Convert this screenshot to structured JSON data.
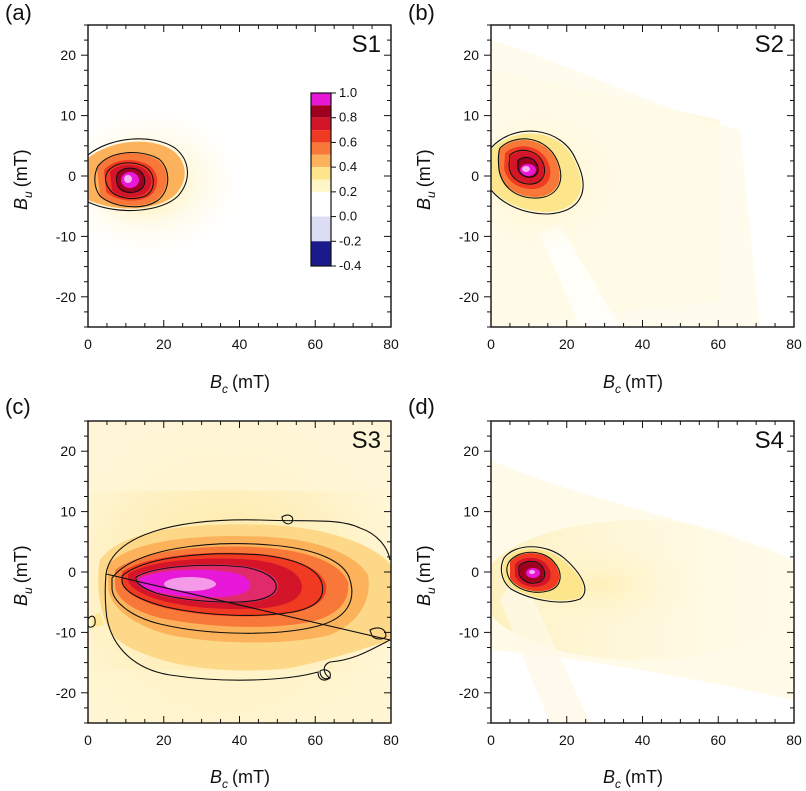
{
  "figure": {
    "x_tick_labels": [
      "0",
      "20",
      "40",
      "60",
      "80"
    ],
    "y_tick_labels": [
      "20",
      "10",
      "0",
      "-10",
      "-20"
    ],
    "xlabel": {
      "symbol": "B",
      "subscript": "c",
      "unit": "(mT)"
    },
    "ylabel": {
      "symbol": "B",
      "subscript": "u",
      "unit": "(mT)"
    }
  },
  "colorbar": {
    "tick_labels": [
      "1.0",
      "0.8",
      "0.6",
      "0.4",
      "0.2",
      "0.0",
      "-0.2",
      "-0.4"
    ],
    "range": [
      -0.4,
      1.0
    ],
    "levels": [
      {
        "from": 0.9,
        "to": 1.0,
        "color": "#e818d8"
      },
      {
        "from": 0.8,
        "to": 0.9,
        "color": "#a00020"
      },
      {
        "from": 0.7,
        "to": 0.8,
        "color": "#d41428"
      },
      {
        "from": 0.6,
        "to": 0.7,
        "color": "#f03a22"
      },
      {
        "from": 0.5,
        "to": 0.6,
        "color": "#f8783a"
      },
      {
        "from": 0.4,
        "to": 0.5,
        "color": "#fcb25a"
      },
      {
        "from": 0.3,
        "to": 0.4,
        "color": "#fde58c"
      },
      {
        "from": 0.2,
        "to": 0.3,
        "color": "#fff6c8"
      },
      {
        "from": 0.0,
        "to": 0.2,
        "color": "#ffffff"
      },
      {
        "from": -0.2,
        "to": 0.0,
        "color": "#dcdcf4"
      },
      {
        "from": -0.4,
        "to": -0.2,
        "color": "#1a1a8c"
      }
    ]
  },
  "chart_data": [
    {
      "type": "heatmap",
      "panel_label": "(a)",
      "sample": "S1",
      "xlim": [
        0,
        80
      ],
      "ylim": [
        -25,
        25
      ],
      "peak": {
        "Bc": 10,
        "Bu": -0.5,
        "value": 1.0
      },
      "contour_levels": [
        0.2,
        0.4,
        0.6,
        0.8
      ]
    },
    {
      "type": "heatmap",
      "panel_label": "(b)",
      "sample": "S2",
      "xlim": [
        0,
        80
      ],
      "ylim": [
        -25,
        25
      ],
      "peak": {
        "Bc": 9,
        "Bu": 1,
        "value": 1.0
      },
      "contour_levels": [
        0.2,
        0.4,
        0.6,
        0.8
      ]
    },
    {
      "type": "heatmap",
      "panel_label": "(c)",
      "sample": "S3",
      "xlim": [
        0,
        80
      ],
      "ylim": [
        -25,
        25
      ],
      "peak": {
        "Bc": 25,
        "Bu": -3,
        "value": 1.0
      },
      "contour_levels": [
        0.2,
        0.4,
        0.6,
        0.8
      ]
    },
    {
      "type": "heatmap",
      "panel_label": "(d)",
      "sample": "S4",
      "xlim": [
        0,
        80
      ],
      "ylim": [
        -25,
        25
      ],
      "peak": {
        "Bc": 11,
        "Bu": 0,
        "value": 1.0
      },
      "contour_levels": [
        0.2,
        0.4,
        0.6,
        0.8
      ]
    }
  ]
}
